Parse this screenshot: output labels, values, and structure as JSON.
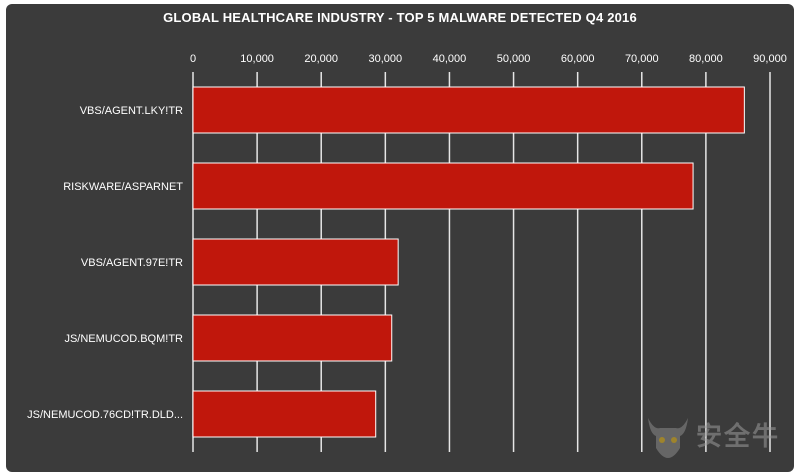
{
  "chart_data": {
    "type": "bar",
    "orientation": "horizontal",
    "title": "GLOBAL HEALTHCARE INDUSTRY - TOP 5 MALWARE DETECTED Q4 2016",
    "categories": [
      "VBS/AGENT.LKY!TR",
      "RISKWARE/ASPARNET",
      "VBS/AGENT.97E!TR",
      "JS/NEMUCOD.BQM!TR",
      "JS/NEMUCOD.76CD!TR.DLD..."
    ],
    "values": [
      86000,
      78000,
      32000,
      31000,
      28500
    ],
    "xlim": [
      0,
      90000
    ],
    "x_ticks": [
      "0",
      "10,000",
      "20,000",
      "30,000",
      "40,000",
      "50,000",
      "60,000",
      "70,000",
      "80,000",
      "90,000"
    ],
    "x_axis_position": "top",
    "grid": true,
    "bar_color": "#c0170c",
    "background_color": "#3b3b3b"
  },
  "watermark": {
    "text": "安全牛",
    "icon": "bull-head-icon"
  }
}
